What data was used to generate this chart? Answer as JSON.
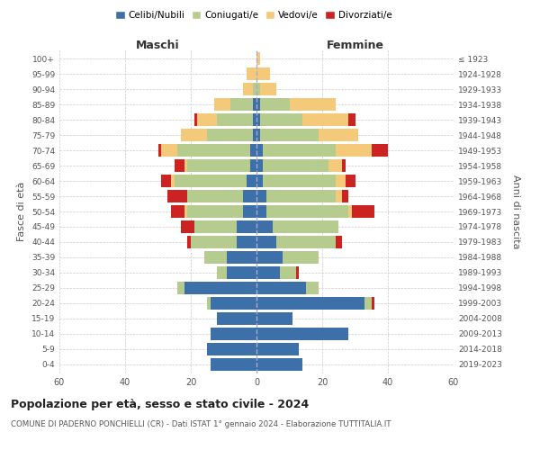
{
  "age_groups": [
    "0-4",
    "5-9",
    "10-14",
    "15-19",
    "20-24",
    "25-29",
    "30-34",
    "35-39",
    "40-44",
    "45-49",
    "50-54",
    "55-59",
    "60-64",
    "65-69",
    "70-74",
    "75-79",
    "80-84",
    "85-89",
    "90-94",
    "95-99",
    "100+"
  ],
  "birth_years": [
    "2019-2023",
    "2014-2018",
    "2009-2013",
    "2004-2008",
    "1999-2003",
    "1994-1998",
    "1989-1993",
    "1984-1988",
    "1979-1983",
    "1974-1978",
    "1969-1973",
    "1964-1968",
    "1959-1963",
    "1954-1958",
    "1949-1953",
    "1944-1948",
    "1939-1943",
    "1934-1938",
    "1929-1933",
    "1924-1928",
    "≤ 1923"
  ],
  "males": {
    "celibi": [
      14,
      15,
      14,
      12,
      14,
      22,
      9,
      9,
      6,
      6,
      4,
      4,
      3,
      2,
      2,
      1,
      1,
      1,
      0,
      0,
      0
    ],
    "coniugati": [
      0,
      0,
      0,
      0,
      1,
      2,
      3,
      7,
      14,
      13,
      17,
      17,
      22,
      19,
      22,
      14,
      11,
      7,
      1,
      0,
      0
    ],
    "vedovi": [
      0,
      0,
      0,
      0,
      0,
      0,
      0,
      0,
      0,
      0,
      1,
      0,
      1,
      1,
      5,
      8,
      6,
      5,
      3,
      3,
      0
    ],
    "divorziati": [
      0,
      0,
      0,
      0,
      0,
      0,
      0,
      0,
      1,
      4,
      4,
      6,
      3,
      3,
      1,
      0,
      1,
      0,
      0,
      0,
      0
    ]
  },
  "females": {
    "nubili": [
      14,
      13,
      28,
      11,
      33,
      15,
      7,
      8,
      6,
      5,
      3,
      3,
      2,
      2,
      2,
      1,
      1,
      1,
      0,
      0,
      0
    ],
    "coniugate": [
      0,
      0,
      0,
      0,
      2,
      4,
      5,
      11,
      18,
      20,
      25,
      21,
      22,
      20,
      22,
      18,
      13,
      9,
      1,
      0,
      0
    ],
    "vedove": [
      0,
      0,
      0,
      0,
      0,
      0,
      0,
      0,
      0,
      0,
      1,
      2,
      3,
      4,
      11,
      12,
      14,
      14,
      5,
      4,
      1
    ],
    "divorziate": [
      0,
      0,
      0,
      0,
      1,
      0,
      1,
      0,
      2,
      0,
      7,
      2,
      3,
      1,
      5,
      0,
      2,
      0,
      0,
      0,
      0
    ]
  },
  "colors": {
    "celibi": "#3d6fa8",
    "coniugati": "#b5cc8e",
    "vedovi": "#f5c97a",
    "divorziati": "#cc2222"
  },
  "title": "Popolazione per età, sesso e stato civile - 2024",
  "subtitle": "COMUNE DI PADERNO PONCHIELLI (CR) - Dati ISTAT 1° gennaio 2024 - Elaborazione TUTTITALIA.IT",
  "xlabel_left": "Maschi",
  "xlabel_right": "Femmine",
  "ylabel_left": "Fasce di età",
  "ylabel_right": "Anni di nascita",
  "xlim": 60,
  "legend_labels": [
    "Celibi/Nubili",
    "Coniugati/e",
    "Vedovi/e",
    "Divorziati/e"
  ],
  "background_color": "#ffffff",
  "bar_height": 0.8
}
